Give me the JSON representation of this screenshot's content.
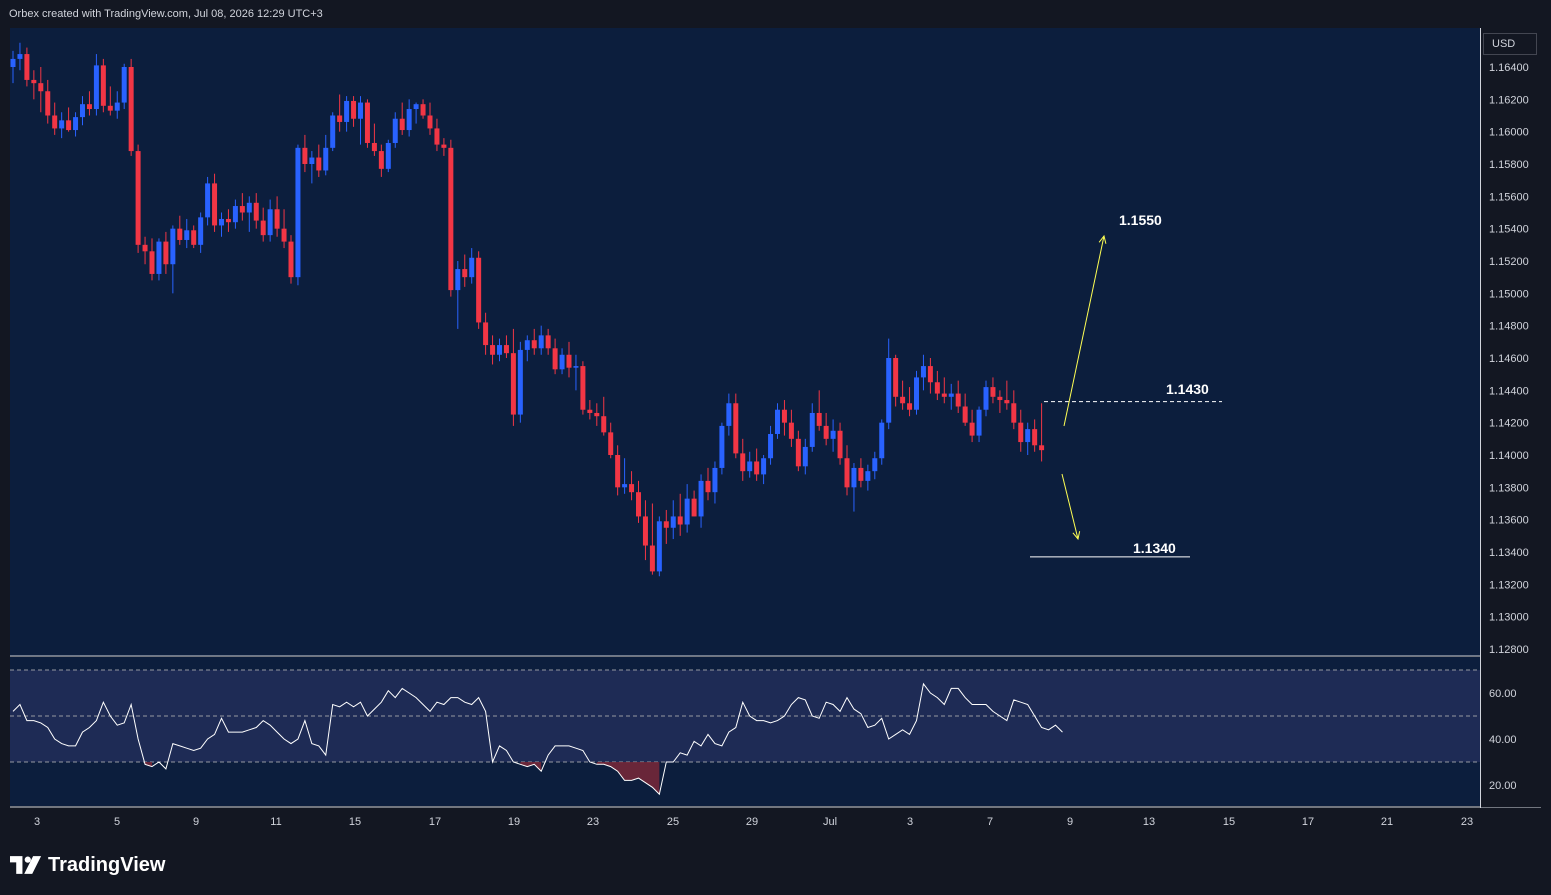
{
  "header": {
    "credit": "Orbex created with TradingView.com, Jul 08, 2026 12:29 UTC+3"
  },
  "currency": "USD",
  "branding": {
    "name": "TradingView",
    "logo_icon": "tradingview-logo-icon"
  },
  "colors": {
    "background": "#131722",
    "plot_background": "#0c1e3d",
    "candle_up": "#2962ff",
    "candle_down": "#f23645",
    "arrow": "#ffff54",
    "rsi_line": "#ffffff",
    "rsi_band": "#1e2b55",
    "rsi_oversold_fill": "#7a2838"
  },
  "chart_data": [
    {
      "type": "candlestick",
      "title": "",
      "ylim": [
        1.127,
        1.1665
      ],
      "yticks": [
        "1.16400",
        "1.16200",
        "1.16000",
        "1.15800",
        "1.15600",
        "1.15400",
        "1.15200",
        "1.15000",
        "1.14800",
        "1.14600",
        "1.14400",
        "1.14200",
        "1.14000",
        "1.13800",
        "1.13600",
        "1.13400",
        "1.13200",
        "1.13000",
        "1.12800"
      ],
      "xticks": [
        "3",
        "5",
        "9",
        "11",
        "15",
        "17",
        "19",
        "23",
        "25",
        "29",
        "Jul",
        "3",
        "7",
        "9",
        "13",
        "15",
        "17",
        "21",
        "23"
      ],
      "annotations": {
        "target_up": "1.1550",
        "resistance": "1.1430",
        "target_down": "1.1340",
        "resistance_value": 1.1433,
        "support_value": 1.1337
      },
      "candles": [
        [
          1.164,
          1.165,
          1.163,
          1.1645
        ],
        [
          1.1645,
          1.1655,
          1.1638,
          1.1648
        ],
        [
          1.1648,
          1.1652,
          1.1628,
          1.1632
        ],
        [
          1.1632,
          1.1638,
          1.162,
          1.163
        ],
        [
          1.163,
          1.164,
          1.1612,
          1.1625
        ],
        [
          1.1625,
          1.1632,
          1.1605,
          1.161
        ],
        [
          1.161,
          1.1618,
          1.1598,
          1.1602
        ],
        [
          1.1602,
          1.1612,
          1.1596,
          1.1607
        ],
        [
          1.1607,
          1.1615,
          1.16,
          1.1601
        ],
        [
          1.1601,
          1.1612,
          1.1597,
          1.1609
        ],
        [
          1.1609,
          1.1622,
          1.1604,
          1.1617
        ],
        [
          1.1617,
          1.1625,
          1.161,
          1.1614
        ],
        [
          1.1614,
          1.1648,
          1.161,
          1.1641
        ],
        [
          1.1641,
          1.1645,
          1.1612,
          1.1616
        ],
        [
          1.1616,
          1.1628,
          1.161,
          1.1613
        ],
        [
          1.1613,
          1.1625,
          1.1608,
          1.1618
        ],
        [
          1.1618,
          1.1642,
          1.1614,
          1.164
        ],
        [
          1.164,
          1.1645,
          1.1585,
          1.1588
        ],
        [
          1.1588,
          1.1592,
          1.1525,
          1.153
        ],
        [
          1.153,
          1.1535,
          1.1518,
          1.1526
        ],
        [
          1.1526,
          1.1534,
          1.1508,
          1.1512
        ],
        [
          1.1512,
          1.1534,
          1.1508,
          1.1532
        ],
        [
          1.1532,
          1.1538,
          1.1512,
          1.1518
        ],
        [
          1.1518,
          1.1542,
          1.15,
          1.154
        ],
        [
          1.154,
          1.1548,
          1.153,
          1.1533
        ],
        [
          1.1533,
          1.1546,
          1.1528,
          1.1539
        ],
        [
          1.1539,
          1.1542,
          1.1528,
          1.153
        ],
        [
          1.153,
          1.155,
          1.1525,
          1.1547
        ],
        [
          1.1547,
          1.1572,
          1.1542,
          1.1568
        ],
        [
          1.1568,
          1.1574,
          1.1538,
          1.1542
        ],
        [
          1.1542,
          1.155,
          1.1535,
          1.1546
        ],
        [
          1.1546,
          1.1552,
          1.1538,
          1.1544
        ],
        [
          1.1544,
          1.1558,
          1.154,
          1.1554
        ],
        [
          1.1554,
          1.1562,
          1.1545,
          1.155
        ],
        [
          1.155,
          1.156,
          1.1538,
          1.1556
        ],
        [
          1.1556,
          1.1562,
          1.154,
          1.1545
        ],
        [
          1.1545,
          1.1553,
          1.1532,
          1.1536
        ],
        [
          1.1536,
          1.1558,
          1.1532,
          1.1552
        ],
        [
          1.1552,
          1.156,
          1.1535,
          1.154
        ],
        [
          1.154,
          1.1552,
          1.1528,
          1.1532
        ],
        [
          1.1532,
          1.1536,
          1.1506,
          1.151
        ],
        [
          1.151,
          1.1592,
          1.1505,
          1.159
        ],
        [
          1.159,
          1.1598,
          1.1575,
          1.158
        ],
        [
          1.158,
          1.1588,
          1.1568,
          1.1584
        ],
        [
          1.1584,
          1.1592,
          1.1572,
          1.1576
        ],
        [
          1.1576,
          1.1598,
          1.1573,
          1.159
        ],
        [
          1.159,
          1.1612,
          1.1588,
          1.161
        ],
        [
          1.161,
          1.1623,
          1.16,
          1.1606
        ],
        [
          1.1606,
          1.1622,
          1.16,
          1.1619
        ],
        [
          1.1619,
          1.1622,
          1.1603,
          1.1608
        ],
        [
          1.1608,
          1.1622,
          1.1592,
          1.1618
        ],
        [
          1.1618,
          1.162,
          1.159,
          1.1593
        ],
        [
          1.1593,
          1.1605,
          1.1585,
          1.1588
        ],
        [
          1.1588,
          1.1592,
          1.1572,
          1.1577
        ],
        [
          1.1577,
          1.1595,
          1.1575,
          1.1593
        ],
        [
          1.1593,
          1.1612,
          1.159,
          1.1608
        ],
        [
          1.1608,
          1.1618,
          1.1598,
          1.1601
        ],
        [
          1.1601,
          1.162,
          1.1597,
          1.1614
        ],
        [
          1.1614,
          1.1618,
          1.1605,
          1.1617
        ],
        [
          1.1617,
          1.162,
          1.1608,
          1.161
        ],
        [
          1.161,
          1.1618,
          1.1598,
          1.1602
        ],
        [
          1.1602,
          1.1608,
          1.1588,
          1.1592
        ],
        [
          1.1592,
          1.1596,
          1.1585,
          1.159
        ],
        [
          1.159,
          1.1595,
          1.1498,
          1.1502
        ],
        [
          1.1502,
          1.152,
          1.1478,
          1.1515
        ],
        [
          1.1515,
          1.1524,
          1.1504,
          1.151
        ],
        [
          1.151,
          1.1528,
          1.1506,
          1.1522
        ],
        [
          1.1522,
          1.1526,
          1.1478,
          1.1482
        ],
        [
          1.1482,
          1.1488,
          1.1462,
          1.1468
        ],
        [
          1.1468,
          1.1474,
          1.1456,
          1.1462
        ],
        [
          1.1462,
          1.1472,
          1.1458,
          1.1468
        ],
        [
          1.1468,
          1.1474,
          1.146,
          1.1463
        ],
        [
          1.1463,
          1.1478,
          1.1418,
          1.1425
        ],
        [
          1.1425,
          1.147,
          1.142,
          1.1465
        ],
        [
          1.1465,
          1.1474,
          1.1458,
          1.1471
        ],
        [
          1.1471,
          1.1478,
          1.1462,
          1.1466
        ],
        [
          1.1466,
          1.148,
          1.1462,
          1.1474
        ],
        [
          1.1474,
          1.1478,
          1.1462,
          1.1466
        ],
        [
          1.1466,
          1.1472,
          1.145,
          1.1453
        ],
        [
          1.1453,
          1.1466,
          1.145,
          1.1462
        ],
        [
          1.1462,
          1.147,
          1.1448,
          1.1454
        ],
        [
          1.1454,
          1.1462,
          1.144,
          1.1455
        ],
        [
          1.1455,
          1.1458,
          1.1425,
          1.1428
        ],
        [
          1.1428,
          1.1434,
          1.1422,
          1.1426
        ],
        [
          1.1426,
          1.1432,
          1.1418,
          1.1424
        ],
        [
          1.1424,
          1.1436,
          1.1412,
          1.1414
        ],
        [
          1.1414,
          1.142,
          1.1398,
          1.14
        ],
        [
          1.14,
          1.1406,
          1.1375,
          1.138
        ],
        [
          1.138,
          1.1398,
          1.1376,
          1.1382
        ],
        [
          1.1382,
          1.139,
          1.1372,
          1.1377
        ],
        [
          1.1377,
          1.1384,
          1.1358,
          1.1362
        ],
        [
          1.1362,
          1.1372,
          1.1335,
          1.1344
        ],
        [
          1.1344,
          1.137,
          1.1326,
          1.1328
        ],
        [
          1.1328,
          1.1362,
          1.1325,
          1.1359
        ],
        [
          1.1359,
          1.1366,
          1.1345,
          1.1355
        ],
        [
          1.1355,
          1.1372,
          1.1348,
          1.1362
        ],
        [
          1.1362,
          1.1376,
          1.135,
          1.1357
        ],
        [
          1.1357,
          1.1382,
          1.1352,
          1.1373
        ],
        [
          1.1373,
          1.1378,
          1.1362,
          1.1362
        ],
        [
          1.1362,
          1.1388,
          1.1355,
          1.1384
        ],
        [
          1.1384,
          1.1392,
          1.1372,
          1.1377
        ],
        [
          1.1377,
          1.1396,
          1.137,
          1.1392
        ],
        [
          1.1392,
          1.142,
          1.1388,
          1.1418
        ],
        [
          1.1418,
          1.1438,
          1.1412,
          1.1432
        ],
        [
          1.1432,
          1.1438,
          1.1398,
          1.1401
        ],
        [
          1.1401,
          1.141,
          1.1384,
          1.139
        ],
        [
          1.139,
          1.1402,
          1.1386,
          1.1396
        ],
        [
          1.1396,
          1.1404,
          1.1384,
          1.1388
        ],
        [
          1.1388,
          1.14,
          1.1382,
          1.1398
        ],
        [
          1.1398,
          1.1418,
          1.1394,
          1.1413
        ],
        [
          1.1413,
          1.1432,
          1.141,
          1.1428
        ],
        [
          1.1428,
          1.1434,
          1.1412,
          1.142
        ],
        [
          1.142,
          1.1428,
          1.1405,
          1.141
        ],
        [
          1.141,
          1.1415,
          1.139,
          1.1393
        ],
        [
          1.1393,
          1.141,
          1.1388,
          1.1405
        ],
        [
          1.1405,
          1.1432,
          1.1402,
          1.1426
        ],
        [
          1.1426,
          1.144,
          1.1415,
          1.1418
        ],
        [
          1.1418,
          1.1426,
          1.1406,
          1.141
        ],
        [
          1.141,
          1.1422,
          1.1402,
          1.1415
        ],
        [
          1.1415,
          1.142,
          1.1394,
          1.1398
        ],
        [
          1.1398,
          1.1406,
          1.1375,
          1.138
        ],
        [
          1.138,
          1.1395,
          1.1365,
          1.1392
        ],
        [
          1.1392,
          1.1398,
          1.138,
          1.1384
        ],
        [
          1.1384,
          1.1394,
          1.1378,
          1.139
        ],
        [
          1.139,
          1.1402,
          1.1385,
          1.1398
        ],
        [
          1.1398,
          1.1422,
          1.1394,
          1.142
        ],
        [
          1.142,
          1.1472,
          1.1416,
          1.146
        ],
        [
          1.146,
          1.1462,
          1.143,
          1.1436
        ],
        [
          1.1436,
          1.1446,
          1.1428,
          1.1432
        ],
        [
          1.1432,
          1.1442,
          1.1424,
          1.1428
        ],
        [
          1.1428,
          1.1452,
          1.1425,
          1.1448
        ],
        [
          1.1448,
          1.1462,
          1.144,
          1.1455
        ],
        [
          1.1455,
          1.146,
          1.1438,
          1.1445
        ],
        [
          1.1445,
          1.1452,
          1.1434,
          1.1438
        ],
        [
          1.1438,
          1.1448,
          1.1432,
          1.1436
        ],
        [
          1.1436,
          1.1444,
          1.1428,
          1.1438
        ],
        [
          1.1438,
          1.1446,
          1.1426,
          1.143
        ],
        [
          1.143,
          1.1438,
          1.1418,
          1.142
        ],
        [
          1.142,
          1.1428,
          1.1408,
          1.1412
        ],
        [
          1.1412,
          1.143,
          1.1408,
          1.1428
        ],
        [
          1.1428,
          1.1446,
          1.1424,
          1.1442
        ],
        [
          1.1442,
          1.1448,
          1.1432,
          1.1436
        ],
        [
          1.1436,
          1.144,
          1.1426,
          1.1434
        ],
        [
          1.1434,
          1.1446,
          1.1428,
          1.1432
        ],
        [
          1.1432,
          1.144,
          1.1416,
          1.142
        ],
        [
          1.142,
          1.1428,
          1.1402,
          1.1408
        ],
        [
          1.1408,
          1.142,
          1.14,
          1.1416
        ],
        [
          1.1416,
          1.1422,
          1.1402,
          1.1406
        ],
        [
          1.1406,
          1.1432,
          1.1396,
          1.1403
        ]
      ]
    },
    {
      "type": "line",
      "title": "",
      "ylim": [
        14,
        72
      ],
      "yticks": [
        "60.00",
        "40.00",
        "20.00"
      ],
      "levels": [
        70,
        50,
        30
      ],
      "values": [
        52,
        55,
        48,
        48,
        47,
        45,
        40,
        38,
        37,
        37,
        43,
        45,
        48,
        56,
        50,
        46,
        47,
        55,
        40,
        29,
        28,
        30,
        27,
        38,
        37,
        36,
        35,
        36,
        40,
        42,
        49,
        43,
        43,
        43,
        44,
        45,
        48,
        46,
        43,
        40,
        38,
        40,
        48,
        38,
        37,
        33,
        55,
        54,
        56,
        54,
        56,
        50,
        53,
        56,
        61,
        58,
        62,
        60,
        58,
        55,
        52,
        56,
        55,
        58,
        58,
        56,
        55,
        58,
        52,
        30,
        37,
        35,
        30,
        29,
        28,
        29,
        26,
        33,
        37,
        37,
        37,
        36,
        35,
        30,
        29,
        29,
        28,
        26,
        22,
        22,
        23,
        21,
        19,
        16,
        30,
        30,
        34,
        33,
        39,
        37,
        42,
        38,
        37,
        43,
        45,
        56,
        50,
        48,
        48,
        47,
        48,
        50,
        55,
        58,
        57,
        50,
        49,
        56,
        55,
        52,
        58,
        53,
        51,
        45,
        46,
        49,
        40,
        42,
        44,
        42,
        48,
        64,
        60,
        58,
        55,
        62,
        62,
        58,
        55,
        55,
        55,
        52,
        50,
        48,
        57,
        56,
        55,
        50,
        45,
        44,
        46,
        43
      ]
    }
  ]
}
